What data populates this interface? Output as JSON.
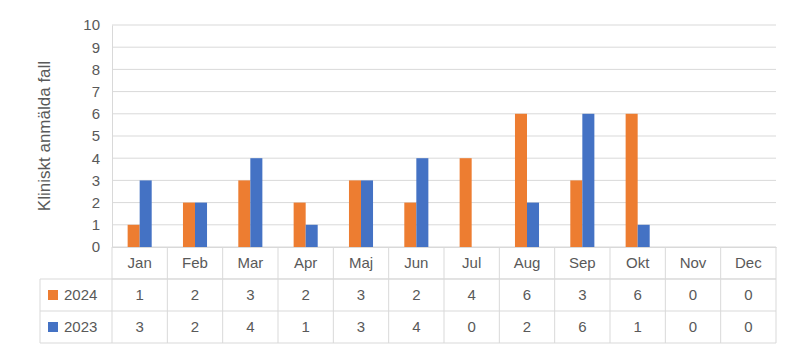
{
  "chart_data": {
    "type": "bar",
    "y_label": "Kliniskt anmälda fall",
    "categories": [
      "Jan",
      "Feb",
      "Mar",
      "Apr",
      "Maj",
      "Jun",
      "Jul",
      "Aug",
      "Sep",
      "Okt",
      "Nov",
      "Dec"
    ],
    "series": [
      {
        "name": "2024",
        "color": "#ed7d31",
        "values": [
          1,
          2,
          3,
          2,
          3,
          2,
          4,
          6,
          3,
          6,
          0,
          0
        ]
      },
      {
        "name": "2023",
        "color": "#4472c4",
        "values": [
          3,
          2,
          4,
          1,
          3,
          4,
          0,
          2,
          6,
          1,
          0,
          0
        ]
      }
    ],
    "ylim": [
      0,
      10
    ],
    "yticks": [
      0,
      1,
      2,
      3,
      4,
      5,
      6,
      7,
      8,
      9,
      10
    ],
    "grid": true
  }
}
